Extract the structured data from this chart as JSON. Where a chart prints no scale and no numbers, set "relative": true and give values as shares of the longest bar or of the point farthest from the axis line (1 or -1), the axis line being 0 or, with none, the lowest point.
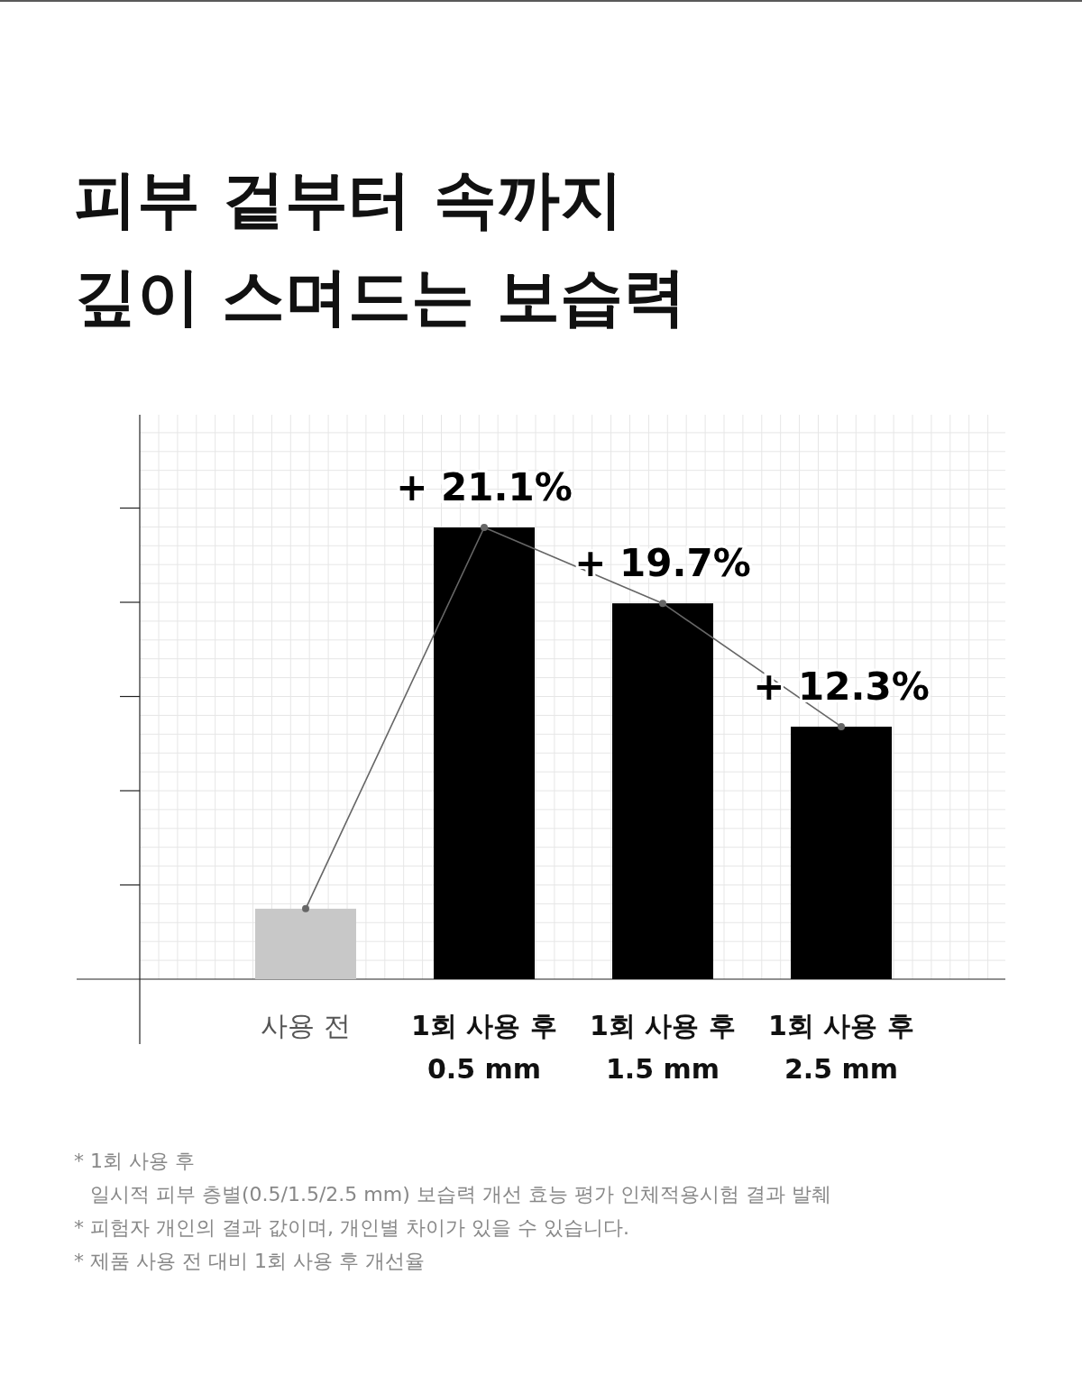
{
  "chart_data": {
    "type": "bar",
    "title": "피부 겉부터 속까지\n깊이 스며드는 보습력",
    "categories": [
      "사용 전",
      "1회 사용 후\n0.5 mm",
      "1회 사용 후\n1.5 mm",
      "1회 사용 후\n2.5 mm"
    ],
    "relative": true,
    "grid": true,
    "series": [
      {
        "colors": [
          "#c8c8c8",
          "#000000",
          "#000000",
          "#000000"
        ],
        "values": [
          0.156,
          1,
          0.832,
          0.559
        ]
      },
      {
        "type": "line",
        "color": "#666666",
        "marker": "circle",
        "values": [
          0.156,
          1,
          0.832,
          0.559
        ]
      }
    ],
    "annotations": [
      {
        "text": "+ 21.1%",
        "x": "1회 사용 후\n0.5 mm",
        "y": 1
      },
      {
        "text": "+ 19.7%",
        "x": "1회 사용 후\n1.5 mm",
        "y": 0.832
      },
      {
        "text": "+ 12.3%",
        "x": "1회 사용 후\n2.5 mm",
        "y": 0.559
      },
      "* 1회 사용 후\n일시적 피부 층별(0.5/1.5/2.5 mm) 보습력 개선 효능 평가 인체적용시험 결과 발췌",
      "* 피험자 개인의 결과 값이며, 개인별 차이가 있을 수 있습니다.",
      "* 제품 사용 전 대비 1회 사용 후 개선율"
    ]
  }
}
